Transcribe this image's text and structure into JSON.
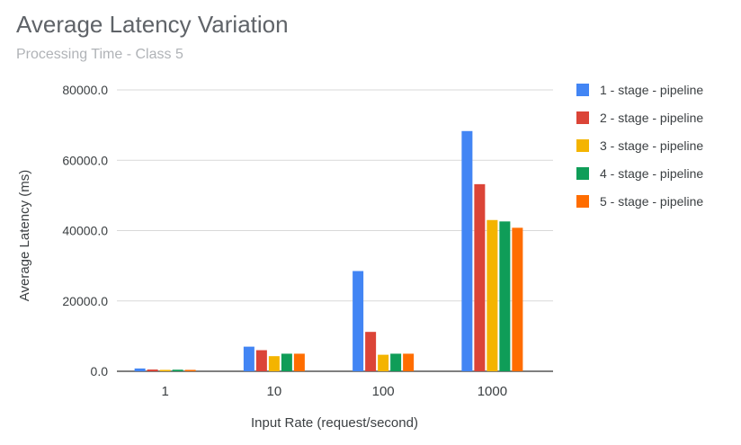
{
  "chart_data": {
    "type": "bar",
    "title": "Average Latency Variation",
    "subtitle": "Processing Time - Class 5",
    "xlabel": "Input Rate (request/second)",
    "ylabel": "Average Latency (ms)",
    "categories": [
      "1",
      "10",
      "100",
      "1000"
    ],
    "ylim": [
      0,
      80000
    ],
    "yticks": [
      0,
      20000,
      40000,
      60000,
      80000
    ],
    "ytick_labels": [
      "0.0",
      "20000.0",
      "40000.0",
      "60000.0",
      "80000.0"
    ],
    "grid": true,
    "legend_position": "right",
    "series": [
      {
        "name": "1 - stage - pipeline",
        "color": "#4285f4",
        "values": [
          800,
          7000,
          28500,
          68300
        ]
      },
      {
        "name": "2 - stage - pipeline",
        "color": "#db4437",
        "values": [
          500,
          6000,
          11200,
          53200
        ]
      },
      {
        "name": "3 - stage - pipeline",
        "color": "#f4b400",
        "values": [
          400,
          4300,
          4700,
          43000
        ]
      },
      {
        "name": "4 - stage - pipeline",
        "color": "#0f9d58",
        "values": [
          450,
          5000,
          5000,
          42600
        ]
      },
      {
        "name": "5 - stage - pipeline",
        "color": "#ff6d00",
        "values": [
          400,
          5000,
          5000,
          40800
        ]
      }
    ]
  }
}
